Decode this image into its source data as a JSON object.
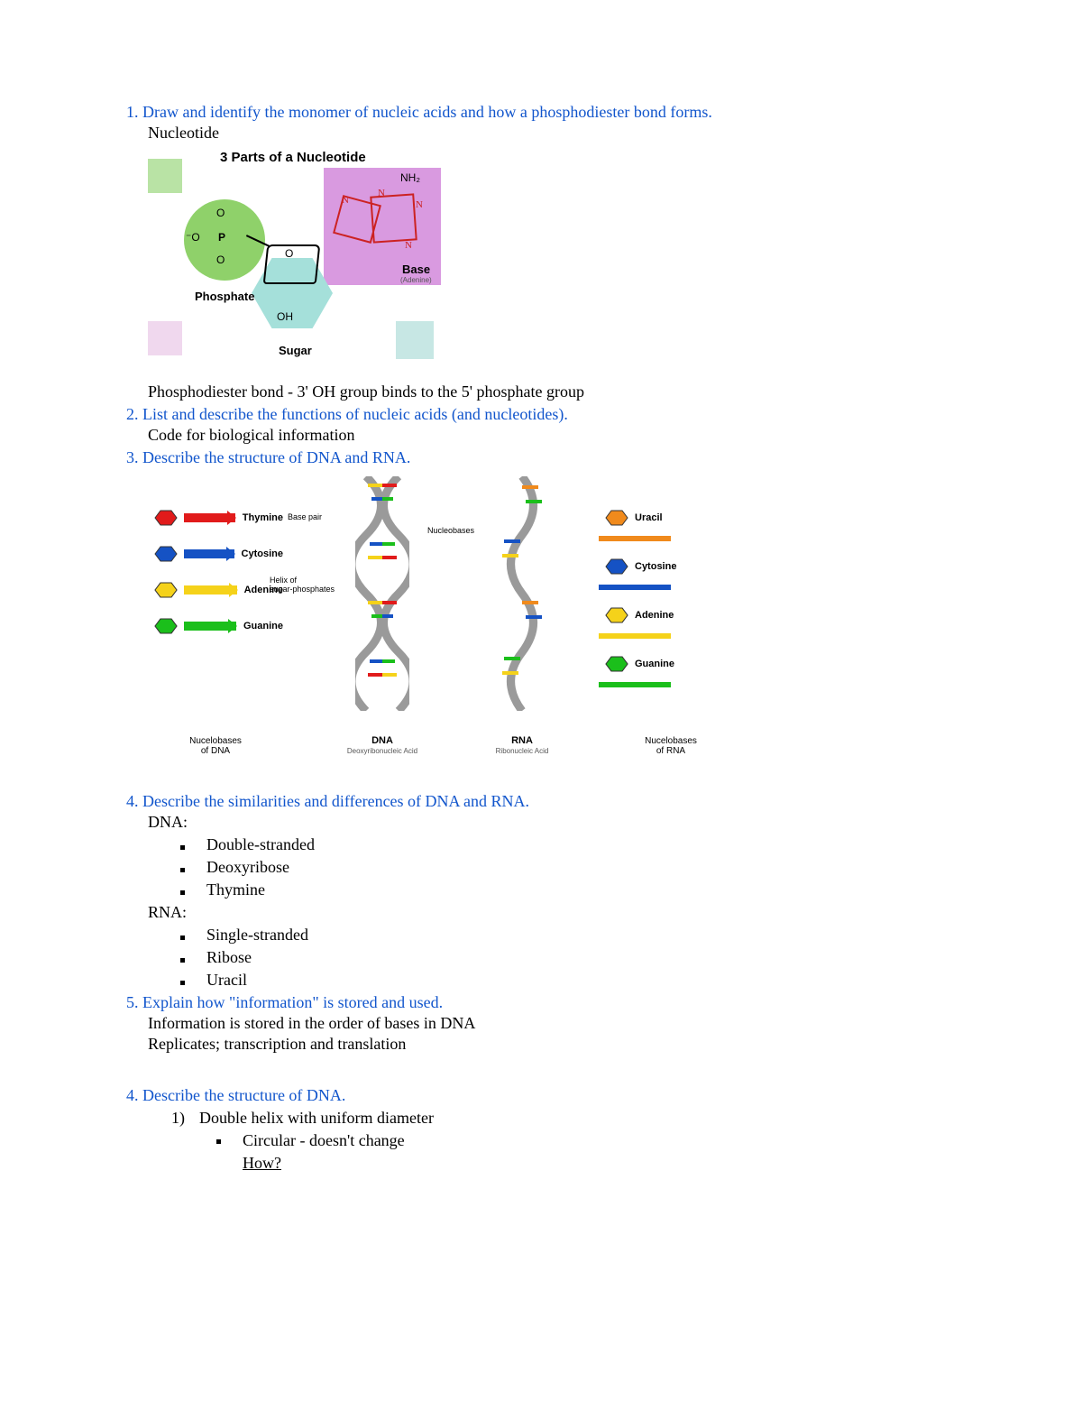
{
  "colors": {
    "question": "#1155cc",
    "body": "#000000",
    "phosphate_fill": "#8fd16a",
    "sugar_fill": "#a5e0da",
    "base_fill": "#d99ae0",
    "swatch_green": "#b9e3a5",
    "swatch_pink": "#f0d8ee",
    "swatch_teal": "#c7e7e4",
    "thymine": "#e11b1b",
    "cytosine": "#1552c4",
    "adenine": "#f5d21a",
    "guanine": "#1bbf1b",
    "uracil": "#f08a1c",
    "helix_backbone": "#9a9a9a"
  },
  "q1": {
    "prompt": "1. Draw and identify the monomer of nucleic acids and how a phosphodiester bond forms.",
    "answer1": "Nucleotide",
    "diagram_title": "3 Parts of a Nucleotide",
    "phosphate_label": "Phosphate",
    "sugar_label": "Sugar",
    "base_label": "Base",
    "base_sub": "(Adenine)",
    "nh2": "NH₂",
    "oh": "OH",
    "o_label": "O",
    "p_label": "P",
    "minus_o": "⁻O",
    "n_label": "N",
    "bond_note": "Phosphodiester bond - 3' OH group binds to the 5' phosphate group"
  },
  "q2": {
    "prompt": "2. List and describe the functions of nucleic acids (and nucleotides).",
    "answer": "Code for biological information"
  },
  "q3": {
    "prompt": "3. Describe the structure of DNA and RNA.",
    "dna_bases": [
      {
        "name": "Thymine",
        "color": "#e11b1b"
      },
      {
        "name": "Cytosine",
        "color": "#1552c4"
      },
      {
        "name": "Adenine",
        "color": "#f5d21a"
      },
      {
        "name": "Guanine",
        "color": "#1bbf1b"
      }
    ],
    "rna_bases": [
      {
        "name": "Uracil",
        "color": "#f08a1c"
      },
      {
        "name": "Cytosine",
        "color": "#1552c4"
      },
      {
        "name": "Adenine",
        "color": "#f5d21a"
      },
      {
        "name": "Guanine",
        "color": "#1bbf1b"
      }
    ],
    "col1_footer_top": "Nucelobases",
    "col1_footer_bot": "of DNA",
    "col2_title": "DNA",
    "col2_sub": "Deoxyribonucleic Acid",
    "col3_title": "RNA",
    "col3_sub": "Ribonucleic Acid",
    "col4_footer_top": "Nucelobases",
    "col4_footer_bot": "of RNA",
    "basepair_lbl": "Base pair",
    "helix_lbl": "Helix of\nsugar-phosphates",
    "nucleobases_lbl": "Nucleobases"
  },
  "q4": {
    "prompt": "4. Describe the similarities and differences of DNA and RNA.",
    "dna_heading": "DNA:",
    "dna_items": [
      "Double-stranded",
      "Deoxyribose",
      "Thymine"
    ],
    "rna_heading": "RNA:",
    "rna_items": [
      "Single-stranded",
      "Ribose",
      "Uracil"
    ]
  },
  "q5": {
    "prompt": "5. Explain how \"information\" is stored and used.",
    "line1": "Information is stored in the order of bases in DNA",
    "line2": "Replicates; transcription and translation"
  },
  "q6": {
    "prompt": "4. Describe the structure of DNA.",
    "item1_num": "1)",
    "item1_text": "Double helix with uniform diameter",
    "sub1": "Circular - doesn't change",
    "sub2": "How?"
  }
}
